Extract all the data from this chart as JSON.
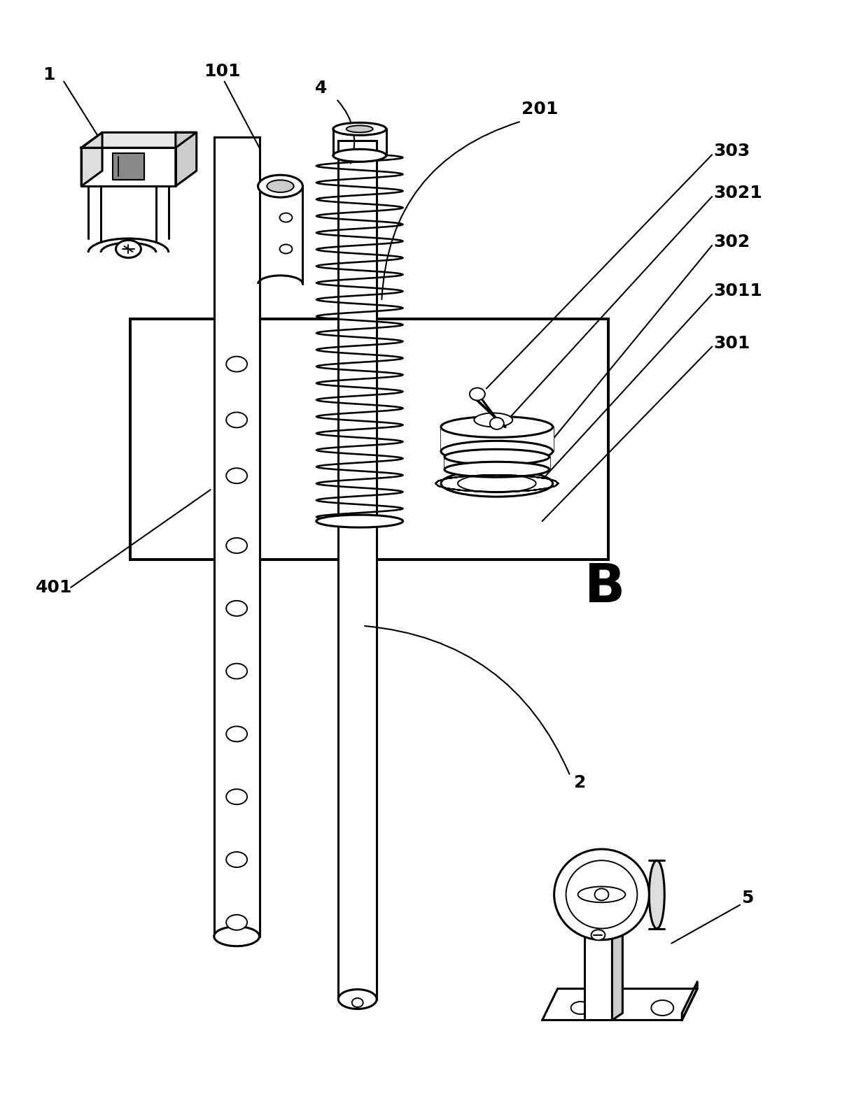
{
  "bg_color": "#ffffff",
  "lc": "#000000",
  "lw": 2.2,
  "tlw": 1.4,
  "fig_w": 12.4,
  "fig_h": 15.67,
  "dpi": 100
}
